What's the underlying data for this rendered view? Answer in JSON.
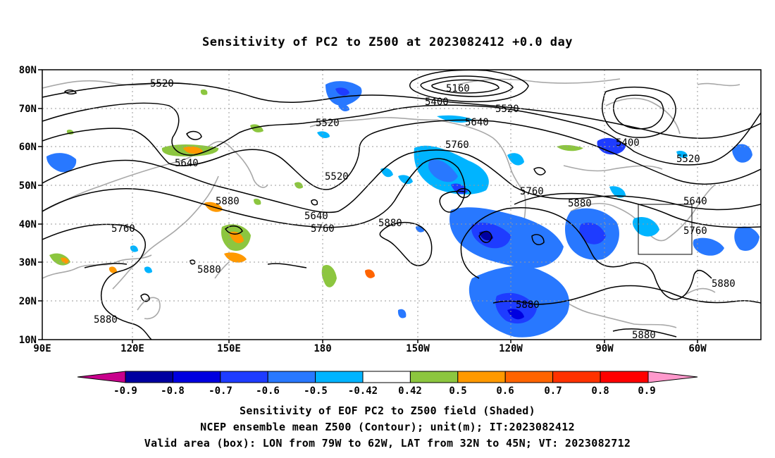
{
  "title": "Sensitivity of PC2 to Z500 at 2023082412 +0.0 day",
  "axes": {
    "lon_labels": [
      "90E",
      "120E",
      "150E",
      "180",
      "150W",
      "120W",
      "90W",
      "60W"
    ],
    "lat_labels": [
      "80N",
      "70N",
      "60N",
      "50N",
      "40N",
      "30N",
      "20N",
      "10N"
    ]
  },
  "contour_labels": [
    "5160",
    "5400",
    "5520",
    "5520",
    "5520",
    "5520",
    "5640",
    "5640",
    "5640",
    "5400",
    "5520",
    "5760",
    "5760",
    "5760",
    "5760",
    "5880",
    "5880",
    "5880",
    "5880",
    "5880",
    "5880",
    "5880",
    "5640",
    "5760",
    "5880"
  ],
  "colorbar": {
    "labels": [
      "-0.9",
      "-0.8",
      "-0.7",
      "-0.6",
      "-0.5",
      "-0.42",
      "0.42",
      "0.5",
      "0.6",
      "0.7",
      "0.8",
      "0.9"
    ],
    "colors": [
      "#0000a0",
      "#0000e0",
      "#1e3cff",
      "#2878ff",
      "#00b4ff",
      "#ffffff",
      "#8cc63f",
      "#ff9900",
      "#ff6400",
      "#ff3200",
      "#ff0000"
    ],
    "low_color": "#c8008c",
    "high_color": "#ff99cc"
  },
  "valid_box": {
    "lon_from": -79,
    "lon_to": -62,
    "lat_from": 32,
    "lat_to": 45
  },
  "captions": [
    "Sensitivity of EOF PC2 to Z500 field (Shaded)",
    "NCEP ensemble mean Z500 (Contour); unit(m); IT:2023082412",
    "Valid area (box): LON from 79W to 62W, LAT from 32N to 45N; VT: 2023082712"
  ]
}
